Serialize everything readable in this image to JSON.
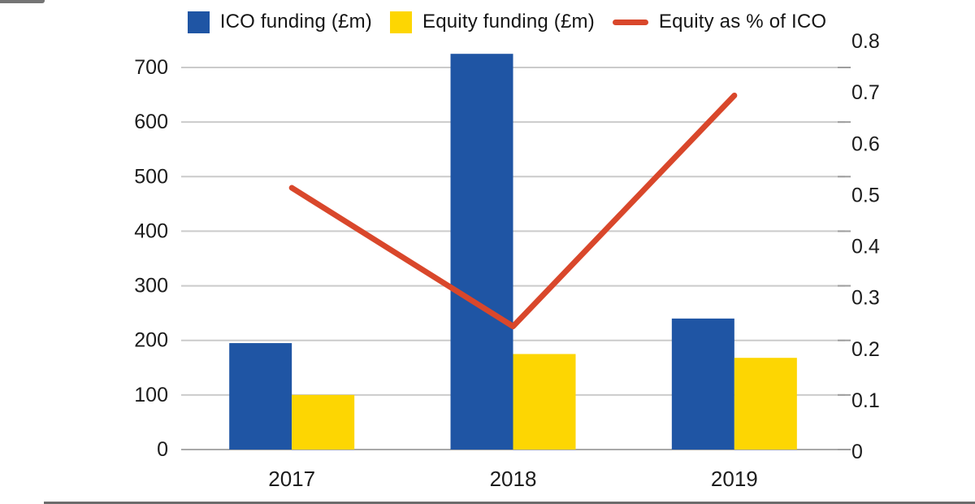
{
  "chart_data": {
    "type": "combo-bar-line",
    "title": "",
    "categories": [
      "2017",
      "2018",
      "2019"
    ],
    "series": [
      {
        "name": "ICO funding (£m)",
        "type": "bar",
        "axis": "left",
        "color": "#1f55a4",
        "values": [
          195,
          725,
          240
        ]
      },
      {
        "name": "Equity funding (£m)",
        "type": "bar",
        "axis": "left",
        "color": "#fdd602",
        "values": [
          100,
          175,
          168
        ]
      },
      {
        "name": "Equity as % of ICO",
        "type": "line",
        "axis": "right",
        "color": "#d9472b",
        "values": [
          0.51,
          0.24,
          0.69
        ]
      }
    ],
    "left_axis": {
      "min": 0,
      "max": 700,
      "step": 100,
      "ticks": [
        "0",
        "100",
        "200",
        "300",
        "400",
        "500",
        "600",
        "700"
      ]
    },
    "right_axis": {
      "min": 0,
      "max": 0.8,
      "step": 0.1,
      "ticks": [
        "0",
        "0.1",
        "0.2",
        "0.3",
        "0.4",
        "0.5",
        "0.6",
        "0.7",
        "0.8"
      ]
    },
    "grid": true,
    "legend_position": "top"
  },
  "colors": {
    "grid": "#cbcbcb",
    "baseline": "#a9a9a9",
    "right_tick": "#9e9e9e",
    "axis_text": "#1c1c1c",
    "background": "#ffffff",
    "artifact": "#474747"
  }
}
